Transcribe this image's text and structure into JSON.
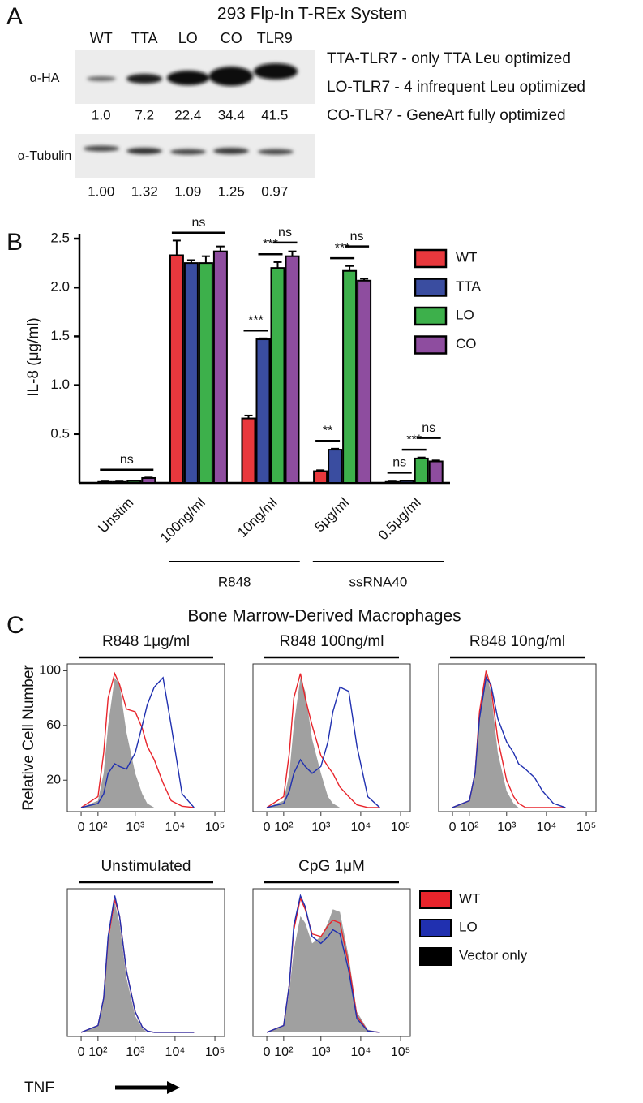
{
  "figure": {
    "panel_labels": [
      "A",
      "B",
      "C"
    ],
    "panel_c_title": "Bone Marrow-Derived Macrophages"
  },
  "blot": {
    "title": "293 Flp-In T-REx System",
    "lanes": [
      "WT",
      "TTA",
      "LO",
      "CO",
      "TLR9"
    ],
    "rows": [
      {
        "label": "α-HA",
        "quantities": [
          "1.0",
          "7.2",
          "22.4",
          "34.4",
          "41.5"
        ]
      },
      {
        "label": "α-Tubulin",
        "quantities": [
          "1.00",
          "1.32",
          "1.09",
          "1.25",
          "0.97"
        ]
      }
    ],
    "notes": [
      "TTA-TLR7 - only TTA Leu optimized",
      "LO-TLR7 - 4 infrequent Leu optimized",
      "CO-TLR7 - GeneArt fully optimized"
    ]
  },
  "chart_data": [
    {
      "type": "bar",
      "ylabel": "IL-8 (μg/ml)",
      "categories": [
        "Unstim",
        "100ng/ml",
        "10ng/ml",
        "5μg/ml",
        "0.5μg/ml"
      ],
      "series": [
        {
          "name": "WT",
          "color": "#e8383d",
          "values": [
            0.01,
            2.33,
            0.66,
            0.12,
            0.01
          ],
          "errors": [
            0.005,
            0.15,
            0.03,
            0.01,
            0.005
          ]
        },
        {
          "name": "TTA",
          "color": "#3a4da0",
          "values": [
            0.01,
            2.25,
            1.47,
            0.34,
            0.02
          ],
          "errors": [
            0.005,
            0.03,
            0.01,
            0.01,
            0.005
          ]
        },
        {
          "name": "LO",
          "color": "#3db04b",
          "values": [
            0.02,
            2.25,
            2.2,
            2.17,
            0.25
          ],
          "errors": [
            0.005,
            0.07,
            0.06,
            0.05,
            0.01
          ]
        },
        {
          "name": "CO",
          "color": "#8e4d9f",
          "values": [
            0.05,
            2.37,
            2.32,
            2.07,
            0.22
          ],
          "errors": [
            0.005,
            0.05,
            0.05,
            0.02,
            0.01
          ]
        }
      ],
      "ylim": [
        0,
        2.55
      ],
      "yticks": [
        0.5,
        {
          "value": 1,
          "label": "1.0"
        },
        1.5,
        {
          "value": 2,
          "label": "2.0"
        },
        2.5
      ],
      "groups": [
        {
          "label": "R848",
          "categories": [
            1,
            2
          ]
        },
        {
          "label": "ssRNA40",
          "categories": [
            3,
            4
          ]
        }
      ],
      "annotations": [
        {
          "label": "ns",
          "category": 0,
          "from": 0,
          "to": 3
        },
        {
          "label": "ns",
          "category": 1,
          "from": 0,
          "to": 3
        },
        {
          "label": "***",
          "category": 2,
          "from": 0,
          "to": 1
        },
        {
          "label": "***",
          "category": 2,
          "from": 1,
          "to": 2
        },
        {
          "label": "ns",
          "category": 2,
          "from": 2,
          "to": 3
        },
        {
          "label": "**",
          "category": 3,
          "from": 0,
          "to": 1
        },
        {
          "label": "***",
          "category": 3,
          "from": 1,
          "to": 2
        },
        {
          "label": "ns",
          "category": 3,
          "from": 2,
          "to": 3
        },
        {
          "label": "ns",
          "category": 4,
          "from": 0,
          "to": 1
        },
        {
          "label": "***",
          "category": 4,
          "from": 1,
          "to": 2
        },
        {
          "label": "ns",
          "category": 4,
          "from": 2,
          "to": 3
        }
      ],
      "legend": "right"
    },
    {
      "type": "area",
      "title": "R848 1μg/ml",
      "ylabel": "Relative Cell Number",
      "x": [
        0,
        100,
        150,
        200,
        300,
        400,
        600,
        1000,
        1500,
        2000,
        3000,
        5000,
        8000,
        15000,
        30000
      ],
      "series": [
        {
          "name": "WT",
          "color": "#e8242b",
          "values": [
            0,
            8,
            40,
            80,
            98,
            90,
            72,
            70,
            58,
            45,
            35,
            18,
            5,
            1,
            0
          ]
        },
        {
          "name": "LO",
          "color": "#2030b0",
          "values": [
            0,
            3,
            10,
            25,
            32,
            30,
            28,
            40,
            60,
            75,
            88,
            95,
            60,
            10,
            0
          ]
        },
        {
          "name": "Vector only",
          "color": "#000000",
          "fill": "#a0a0a0",
          "values": [
            0,
            5,
            25,
            60,
            95,
            90,
            55,
            25,
            10,
            3,
            0,
            0,
            0,
            0,
            0
          ]
        }
      ],
      "xscale": "arcsinh",
      "xscale_cofactor": 88,
      "xlim": [
        -78,
        175000
      ],
      "xticks": [
        0,
        {
          "value": 100,
          "label": "10²"
        },
        {
          "value": 1000,
          "label": "10³"
        },
        {
          "value": 10000,
          "label": "10⁴"
        },
        {
          "value": 100000,
          "label": "10⁵"
        }
      ],
      "ylim": [
        -3,
        105
      ],
      "yticks": [
        20,
        60,
        100
      ]
    },
    {
      "type": "area",
      "title": "R848 100ng/ml",
      "x": [
        0,
        100,
        150,
        200,
        300,
        400,
        600,
        1000,
        1500,
        2000,
        3000,
        5000,
        8000,
        15000,
        30000
      ],
      "series": [
        {
          "name": "WT",
          "color": "#e8242b",
          "values": [
            0,
            8,
            40,
            80,
            98,
            80,
            60,
            38,
            30,
            25,
            15,
            8,
            2,
            0,
            0
          ]
        },
        {
          "name": "LO",
          "color": "#2030b0",
          "values": [
            0,
            3,
            12,
            25,
            35,
            30,
            25,
            30,
            48,
            70,
            88,
            85,
            45,
            8,
            0
          ]
        },
        {
          "name": "Vector only",
          "color": "#000000",
          "fill": "#a0a0a0",
          "values": [
            0,
            5,
            25,
            60,
            95,
            85,
            50,
            25,
            8,
            3,
            0,
            0,
            0,
            0,
            0
          ]
        }
      ],
      "xscale": "arcsinh",
      "xscale_cofactor": 88,
      "xlim": [
        -78,
        175000
      ],
      "xticks": [
        0,
        {
          "value": 100,
          "label": "10²"
        },
        {
          "value": 1000,
          "label": "10³"
        },
        {
          "value": 10000,
          "label": "10⁴"
        },
        {
          "value": 100000,
          "label": "10⁵"
        }
      ],
      "ylim": [
        -3,
        105
      ]
    },
    {
      "type": "area",
      "title": "R848 10ng/ml",
      "x": [
        0,
        100,
        150,
        200,
        300,
        400,
        600,
        1000,
        1500,
        2000,
        3000,
        5000,
        8000,
        15000,
        30000
      ],
      "series": [
        {
          "name": "WT",
          "color": "#e8242b",
          "values": [
            0,
            5,
            25,
            70,
            100,
            88,
            50,
            20,
            8,
            3,
            0,
            0,
            0,
            0,
            0
          ]
        },
        {
          "name": "LO",
          "color": "#2030b0",
          "values": [
            0,
            5,
            25,
            65,
            95,
            90,
            65,
            48,
            40,
            32,
            28,
            22,
            12,
            3,
            0
          ]
        },
        {
          "name": "Vector only",
          "color": "#000000",
          "fill": "#a0a0a0",
          "values": [
            0,
            5,
            25,
            70,
            98,
            85,
            40,
            12,
            3,
            0,
            0,
            0,
            0,
            0,
            0
          ]
        }
      ],
      "xscale": "arcsinh",
      "xscale_cofactor": 88,
      "xlim": [
        -78,
        175000
      ],
      "xticks": [
        0,
        {
          "value": 100,
          "label": "10²"
        },
        {
          "value": 1000,
          "label": "10³"
        },
        {
          "value": 10000,
          "label": "10⁴"
        },
        {
          "value": 100000,
          "label": "10⁵"
        }
      ],
      "ylim": [
        -3,
        105
      ]
    },
    {
      "type": "area",
      "title": "Unstimulated",
      "xlabel": "TNF",
      "x": [
        0,
        100,
        150,
        200,
        300,
        400,
        600,
        1000,
        1500,
        2000,
        3000,
        5000,
        8000,
        15000,
        30000
      ],
      "series": [
        {
          "name": "WT",
          "color": "#e8242b",
          "values": [
            0,
            5,
            25,
            68,
            97,
            85,
            45,
            15,
            4,
            1,
            0,
            0,
            0,
            0,
            0
          ]
        },
        {
          "name": "LO",
          "color": "#2030b0",
          "values": [
            0,
            5,
            25,
            70,
            100,
            85,
            45,
            15,
            4,
            1,
            0,
            0,
            0,
            0,
            0
          ]
        },
        {
          "name": "Vector only",
          "color": "#000000",
          "fill": "#a0a0a0",
          "values": [
            0,
            5,
            25,
            65,
            95,
            80,
            40,
            12,
            3,
            0,
            0,
            0,
            0,
            0,
            0
          ]
        }
      ],
      "xscale": "arcsinh",
      "xscale_cofactor": 88,
      "xlim": [
        -78,
        175000
      ],
      "xticks": [
        0,
        {
          "value": 100,
          "label": "10²"
        },
        {
          "value": 1000,
          "label": "10³"
        },
        {
          "value": 10000,
          "label": "10⁴"
        },
        {
          "value": 100000,
          "label": "10⁵"
        }
      ],
      "ylim": [
        -3,
        105
      ]
    },
    {
      "type": "area",
      "title": "CpG 1μM",
      "x": [
        0,
        100,
        150,
        200,
        300,
        400,
        600,
        1000,
        1500,
        2000,
        3000,
        5000,
        8000,
        15000,
        30000
      ],
      "series": [
        {
          "name": "WT",
          "color": "#e8242b",
          "values": [
            0,
            5,
            35,
            75,
            98,
            90,
            72,
            70,
            78,
            82,
            80,
            50,
            12,
            1,
            0
          ]
        },
        {
          "name": "LO",
          "color": "#2030b0",
          "values": [
            0,
            5,
            35,
            78,
            100,
            92,
            70,
            65,
            70,
            75,
            72,
            45,
            10,
            1,
            0
          ]
        },
        {
          "name": "Vector only",
          "color": "#000000",
          "fill": "#a0a0a0",
          "values": [
            0,
            5,
            30,
            60,
            85,
            80,
            65,
            70,
            80,
            90,
            88,
            55,
            15,
            2,
            0
          ]
        }
      ],
      "xscale": "arcsinh",
      "xscale_cofactor": 88,
      "xlim": [
        -78,
        175000
      ],
      "xticks": [
        0,
        {
          "value": 100,
          "label": "10²"
        },
        {
          "value": 1000,
          "label": "10³"
        },
        {
          "value": 10000,
          "label": "10⁴"
        },
        {
          "value": 100000,
          "label": "10⁵"
        }
      ],
      "ylim": [
        -3,
        105
      ],
      "legend": "right"
    }
  ]
}
